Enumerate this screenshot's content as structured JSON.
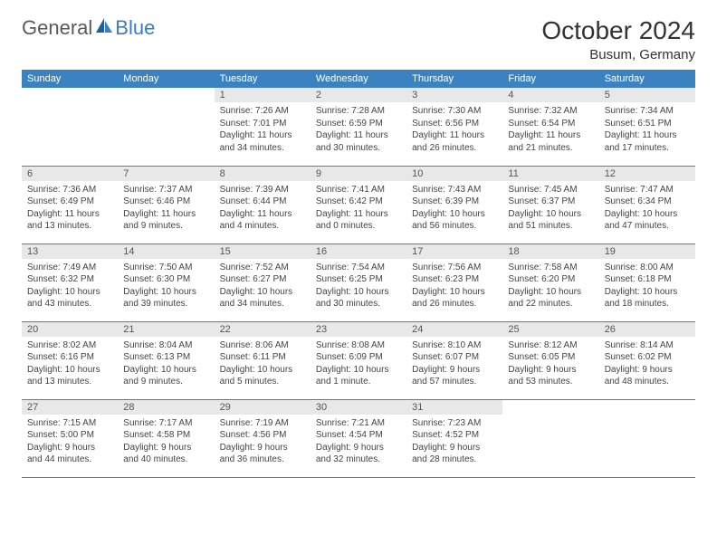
{
  "brand": {
    "general": "General",
    "blue": "Blue"
  },
  "title": "October 2024",
  "location": "Busum, Germany",
  "colors": {
    "header_bg": "#3b83c0",
    "header_text": "#ffffff",
    "daynum_bg": "#e8e8e8",
    "daynum_text": "#555555",
    "body_text": "#444444",
    "rule": "#3b83c0",
    "logo_general": "#5a5a5a",
    "logo_blue": "#3b7bbf",
    "page_bg": "#ffffff"
  },
  "day_names": [
    "Sunday",
    "Monday",
    "Tuesday",
    "Wednesday",
    "Thursday",
    "Friday",
    "Saturday"
  ],
  "layout": {
    "leading_blanks": 2,
    "days_in_month": 31,
    "columns": 7
  },
  "days": [
    {
      "n": 1,
      "sunrise": "7:26 AM",
      "sunset": "7:01 PM",
      "daylight": "11 hours and 34 minutes."
    },
    {
      "n": 2,
      "sunrise": "7:28 AM",
      "sunset": "6:59 PM",
      "daylight": "11 hours and 30 minutes."
    },
    {
      "n": 3,
      "sunrise": "7:30 AM",
      "sunset": "6:56 PM",
      "daylight": "11 hours and 26 minutes."
    },
    {
      "n": 4,
      "sunrise": "7:32 AM",
      "sunset": "6:54 PM",
      "daylight": "11 hours and 21 minutes."
    },
    {
      "n": 5,
      "sunrise": "7:34 AM",
      "sunset": "6:51 PM",
      "daylight": "11 hours and 17 minutes."
    },
    {
      "n": 6,
      "sunrise": "7:36 AM",
      "sunset": "6:49 PM",
      "daylight": "11 hours and 13 minutes."
    },
    {
      "n": 7,
      "sunrise": "7:37 AM",
      "sunset": "6:46 PM",
      "daylight": "11 hours and 9 minutes."
    },
    {
      "n": 8,
      "sunrise": "7:39 AM",
      "sunset": "6:44 PM",
      "daylight": "11 hours and 4 minutes."
    },
    {
      "n": 9,
      "sunrise": "7:41 AM",
      "sunset": "6:42 PM",
      "daylight": "11 hours and 0 minutes."
    },
    {
      "n": 10,
      "sunrise": "7:43 AM",
      "sunset": "6:39 PM",
      "daylight": "10 hours and 56 minutes."
    },
    {
      "n": 11,
      "sunrise": "7:45 AM",
      "sunset": "6:37 PM",
      "daylight": "10 hours and 51 minutes."
    },
    {
      "n": 12,
      "sunrise": "7:47 AM",
      "sunset": "6:34 PM",
      "daylight": "10 hours and 47 minutes."
    },
    {
      "n": 13,
      "sunrise": "7:49 AM",
      "sunset": "6:32 PM",
      "daylight": "10 hours and 43 minutes."
    },
    {
      "n": 14,
      "sunrise": "7:50 AM",
      "sunset": "6:30 PM",
      "daylight": "10 hours and 39 minutes."
    },
    {
      "n": 15,
      "sunrise": "7:52 AM",
      "sunset": "6:27 PM",
      "daylight": "10 hours and 34 minutes."
    },
    {
      "n": 16,
      "sunrise": "7:54 AM",
      "sunset": "6:25 PM",
      "daylight": "10 hours and 30 minutes."
    },
    {
      "n": 17,
      "sunrise": "7:56 AM",
      "sunset": "6:23 PM",
      "daylight": "10 hours and 26 minutes."
    },
    {
      "n": 18,
      "sunrise": "7:58 AM",
      "sunset": "6:20 PM",
      "daylight": "10 hours and 22 minutes."
    },
    {
      "n": 19,
      "sunrise": "8:00 AM",
      "sunset": "6:18 PM",
      "daylight": "10 hours and 18 minutes."
    },
    {
      "n": 20,
      "sunrise": "8:02 AM",
      "sunset": "6:16 PM",
      "daylight": "10 hours and 13 minutes."
    },
    {
      "n": 21,
      "sunrise": "8:04 AM",
      "sunset": "6:13 PM",
      "daylight": "10 hours and 9 minutes."
    },
    {
      "n": 22,
      "sunrise": "8:06 AM",
      "sunset": "6:11 PM",
      "daylight": "10 hours and 5 minutes."
    },
    {
      "n": 23,
      "sunrise": "8:08 AM",
      "sunset": "6:09 PM",
      "daylight": "10 hours and 1 minute."
    },
    {
      "n": 24,
      "sunrise": "8:10 AM",
      "sunset": "6:07 PM",
      "daylight": "9 hours and 57 minutes."
    },
    {
      "n": 25,
      "sunrise": "8:12 AM",
      "sunset": "6:05 PM",
      "daylight": "9 hours and 53 minutes."
    },
    {
      "n": 26,
      "sunrise": "8:14 AM",
      "sunset": "6:02 PM",
      "daylight": "9 hours and 48 minutes."
    },
    {
      "n": 27,
      "sunrise": "7:15 AM",
      "sunset": "5:00 PM",
      "daylight": "9 hours and 44 minutes."
    },
    {
      "n": 28,
      "sunrise": "7:17 AM",
      "sunset": "4:58 PM",
      "daylight": "9 hours and 40 minutes."
    },
    {
      "n": 29,
      "sunrise": "7:19 AM",
      "sunset": "4:56 PM",
      "daylight": "9 hours and 36 minutes."
    },
    {
      "n": 30,
      "sunrise": "7:21 AM",
      "sunset": "4:54 PM",
      "daylight": "9 hours and 32 minutes."
    },
    {
      "n": 31,
      "sunrise": "7:23 AM",
      "sunset": "4:52 PM",
      "daylight": "9 hours and 28 minutes."
    }
  ],
  "labels": {
    "sunrise": "Sunrise: ",
    "sunset": "Sunset: ",
    "daylight": "Daylight: "
  }
}
